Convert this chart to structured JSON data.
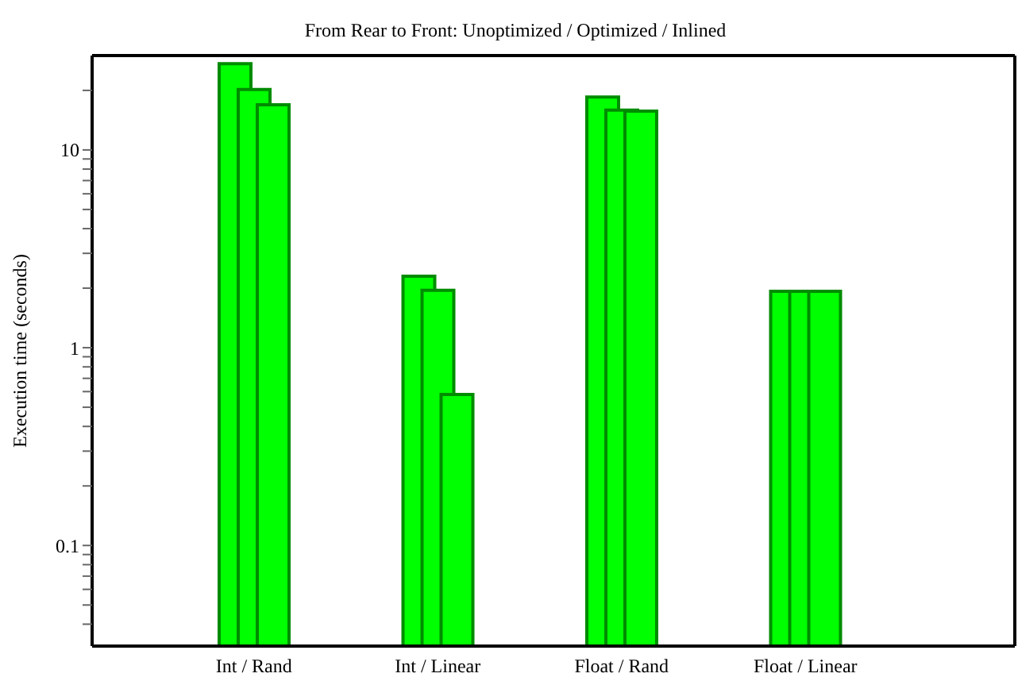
{
  "chart_data": {
    "type": "bar",
    "title": "From Rear to Front: Unoptimized / Optimized / Inlined",
    "ylabel": "Execution time (seconds)",
    "categories": [
      "Int / Rand",
      "Int / Linear",
      "Float / Rand",
      "Float / Linear"
    ],
    "series": [
      {
        "color": "#00ff00",
        "values": [
          27.3,
          2.3,
          18.5,
          1.93
        ]
      },
      {
        "color": "#00ff00",
        "values": [
          20.2,
          1.95,
          15.9,
          1.93
        ]
      },
      {
        "color": "#00ff00",
        "values": [
          16.9,
          0.58,
          15.7,
          1.93
        ]
      }
    ],
    "log": true,
    "ylim": [
      0.031,
      30
    ],
    "yticks": [
      {
        "value": 0.04,
        "label": null
      },
      {
        "value": 0.05,
        "label": null
      },
      {
        "value": 0.06,
        "label": null
      },
      {
        "value": 0.07,
        "label": null
      },
      {
        "value": 0.08,
        "label": null
      },
      {
        "value": 0.09,
        "label": null
      },
      0.1,
      {
        "value": 0.2,
        "label": null
      },
      {
        "value": 0.3,
        "label": null
      },
      {
        "value": 0.4,
        "label": null
      },
      {
        "value": 0.5,
        "label": null
      },
      {
        "value": 0.6,
        "label": null
      },
      {
        "value": 0.7,
        "label": null
      },
      {
        "value": 0.8,
        "label": null
      },
      {
        "value": 0.9,
        "label": null
      },
      1,
      {
        "value": 2,
        "label": null
      },
      {
        "value": 3,
        "label": null
      },
      {
        "value": 4,
        "label": null
      },
      {
        "value": 5,
        "label": null
      },
      {
        "value": 6,
        "label": null
      },
      {
        "value": 7,
        "label": null
      },
      {
        "value": 8,
        "label": null
      },
      {
        "value": 9,
        "label": null
      },
      10,
      {
        "value": 20,
        "label": null
      }
    ],
    "grid": false,
    "legend": false
  }
}
